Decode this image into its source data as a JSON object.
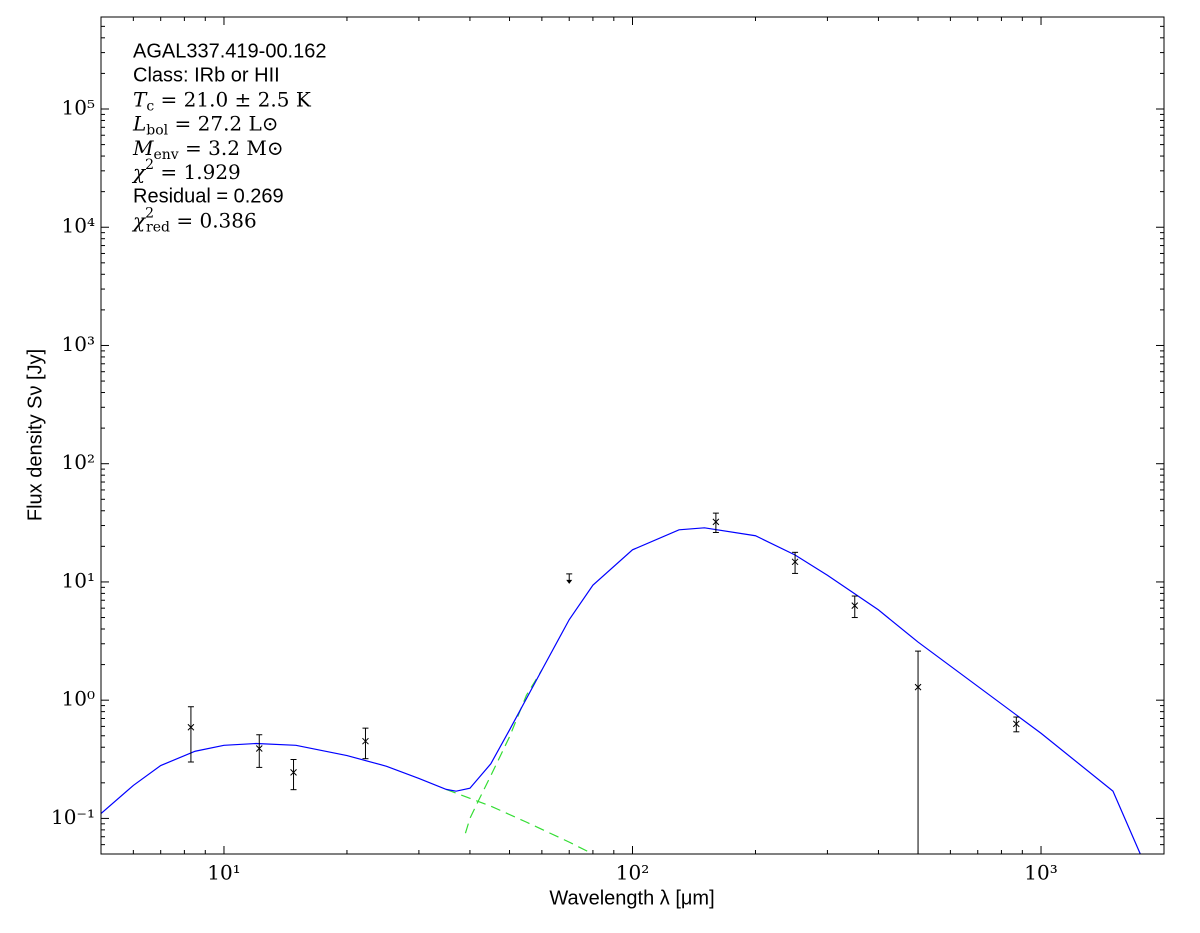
{
  "chart_data": {
    "type": "scatter",
    "xlabel": "Wavelength λ [μm]",
    "ylabel": "Flux density Sν [Jy]",
    "xlog": true,
    "ylog": true,
    "xlim": [
      5,
      2000
    ],
    "ylim": [
      0.05,
      600000
    ],
    "xticks": [
      {
        "value": 10,
        "label": "10¹"
      },
      {
        "value": 100,
        "label": "10²"
      },
      {
        "value": 1000,
        "label": "10³"
      }
    ],
    "yticks": [
      {
        "value": 0.1,
        "label": "10⁻¹"
      },
      {
        "value": 1,
        "label": "10⁰"
      },
      {
        "value": 10,
        "label": "10¹"
      },
      {
        "value": 100,
        "label": "10²"
      },
      {
        "value": 1000,
        "label": "10³"
      },
      {
        "value": 10000,
        "label": "10⁴"
      },
      {
        "value": 100000,
        "label": "10⁵"
      }
    ],
    "annotations": [
      {
        "text": "AGAL337.419-00.162"
      },
      {
        "text": "Class: IRb or HII"
      },
      {
        "var": "T",
        "sub": "c",
        "text": " = 21.0 ± 2.5 K"
      },
      {
        "var": "L",
        "sub": "bol",
        "text": " = 27.2 L⊙"
      },
      {
        "var": "M",
        "sub": "env",
        "text": " = 3.2 M⊙"
      },
      {
        "var": "χ",
        "sup": "2",
        "text": " = 1.929"
      },
      {
        "text": "Residual = 0.269"
      },
      {
        "var": "χ",
        "sup": "2",
        "sub": "red",
        "text": " = 0.386"
      }
    ],
    "model": {
      "color": "#0000ff",
      "x": [
        5,
        6,
        7,
        8.5,
        10,
        12,
        15,
        20,
        25,
        30,
        35,
        37,
        40,
        45,
        50,
        60,
        70,
        80,
        100,
        130,
        150,
        200,
        250,
        300,
        400,
        500,
        700,
        1000,
        1500,
        1750
      ],
      "values": [
        0.11,
        0.19,
        0.28,
        0.37,
        0.415,
        0.43,
        0.415,
        0.34,
        0.276,
        0.218,
        0.176,
        0.17,
        0.18,
        0.29,
        0.56,
        1.8,
        4.8,
        9.4,
        18.7,
        27.6,
        28.7,
        24.6,
        16.9,
        11.4,
        5.8,
        3.1,
        1.31,
        0.525,
        0.17,
        0.05
      ]
    },
    "components": [
      {
        "color": "#33dd33",
        "x": [
          39,
          40,
          42,
          45,
          50,
          55,
          60
        ],
        "values": [
          0.075,
          0.1,
          0.142,
          0.23,
          0.49,
          1.1,
          1.8
        ]
      },
      {
        "color": "#33dd33",
        "x": [
          35,
          45,
          55,
          70,
          80
        ],
        "values": [
          0.176,
          0.127,
          0.093,
          0.063,
          0.05
        ]
      }
    ],
    "points": {
      "color": "#000000",
      "x": [
        8.3,
        12.2,
        14.8,
        22.2,
        160,
        250,
        350,
        500,
        870
      ],
      "values": [
        0.59,
        0.39,
        0.245,
        0.45,
        32.2,
        14.8,
        6.3,
        1.29,
        0.63
      ],
      "errors": [
        0.29,
        0.12,
        0.07,
        0.13,
        6,
        3,
        1.3,
        1.31,
        0.09
      ]
    },
    "upper_limits": {
      "color": "#000000",
      "x": [
        70
      ],
      "values": [
        11.7
      ]
    }
  }
}
